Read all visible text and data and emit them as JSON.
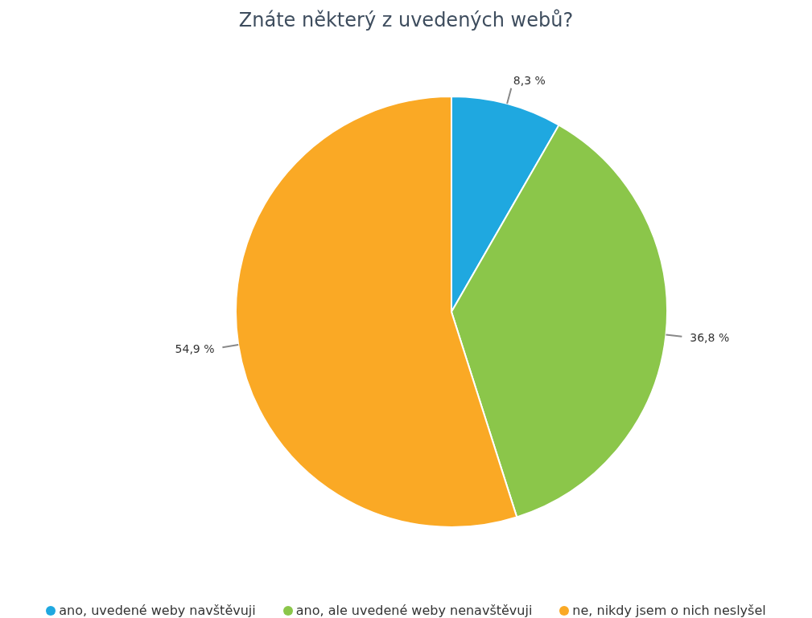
{
  "chart_data": {
    "type": "pie",
    "title": "Znáte některý z uvedených webů?",
    "categories": [
      "ano, uvedené weby navštěvuji",
      "ano, ale uvedené weby nenavštěvuji",
      "ne, nikdy jsem o nich neslyšel"
    ],
    "values": [
      8.3,
      36.8,
      54.9
    ],
    "colors": [
      "#1fa8e0",
      "#8bc64a",
      "#faa925"
    ],
    "value_labels": [
      "8,3 %",
      "36,8 %",
      "54,9 %"
    ],
    "legend": "bottom"
  }
}
